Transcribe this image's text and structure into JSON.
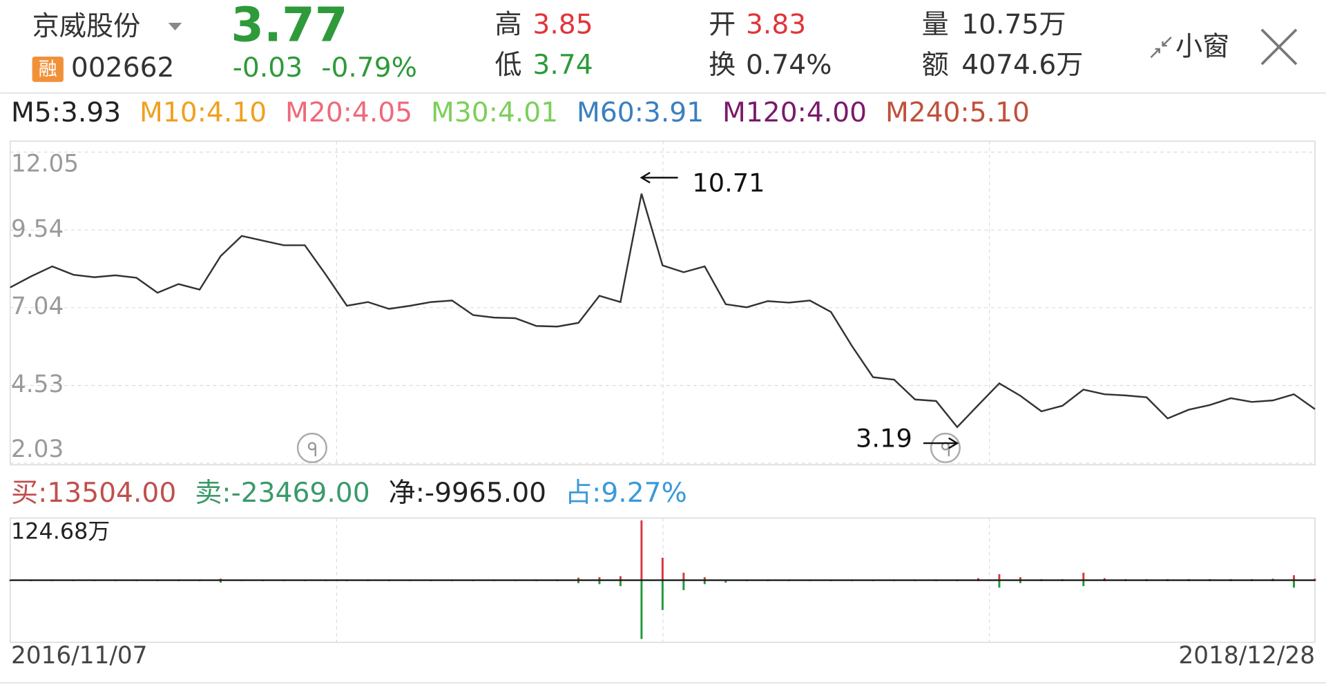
{
  "header": {
    "name": "京威股份",
    "tag": "融",
    "code": "002662",
    "price": "3.77",
    "change": "-0.03",
    "change_pct": "-0.79%",
    "high_label": "高",
    "high": "3.85",
    "low_label": "低",
    "low": "3.74",
    "open_label": "开",
    "open": "3.83",
    "turnover_label": "换",
    "turnover": "0.74%",
    "volume_label": "量",
    "volume": "10.75万",
    "amount_label": "额",
    "amount": "4074.6万",
    "mini_window": "小窗"
  },
  "ma": [
    {
      "text": "M5:3.93",
      "color": "#222222"
    },
    {
      "text": "M10:4.10",
      "color": "#f0a020"
    },
    {
      "text": "M20:4.05",
      "color": "#f0687a"
    },
    {
      "text": "M30:4.01",
      "color": "#7ccf5a"
    },
    {
      "text": "M60:3.91",
      "color": "#3a7fc0"
    },
    {
      "text": "M120:4.00",
      "color": "#7a1a6a"
    },
    {
      "text": "M240:5.10",
      "color": "#c0503a"
    }
  ],
  "flow_legend": [
    {
      "text": "买:13504.00",
      "color": "#c0504d"
    },
    {
      "text": "卖:-23469.00",
      "color": "#3a9a6a"
    },
    {
      "text": "净:-9965.00",
      "color": "#222222"
    },
    {
      "text": "占:9.27%",
      "color": "#3a9ad9"
    }
  ],
  "chart_data": [
    {
      "type": "line",
      "color": "#333333",
      "ylim": [
        2.03,
        12.05
      ],
      "yticks": [
        12.05,
        9.54,
        7.04,
        4.53,
        2.03
      ],
      "grid": true,
      "categories": [
        "2016/11/07",
        null,
        null,
        null,
        null,
        null,
        null,
        null,
        null,
        null,
        null,
        null,
        null,
        null,
        null,
        null,
        null,
        null,
        null,
        null,
        null,
        null,
        null,
        null,
        null,
        null,
        null,
        null,
        null,
        null,
        null,
        null,
        null,
        null,
        null,
        null,
        null,
        null,
        null,
        null,
        null,
        null,
        null,
        null,
        null,
        null,
        null,
        null,
        null,
        null,
        null,
        null,
        null,
        null,
        null,
        null,
        null,
        null,
        null,
        null,
        null,
        null,
        "2018/12/28"
      ],
      "values": [
        7.69,
        8.05,
        8.37,
        8.1,
        8.02,
        8.08,
        8.0,
        7.52,
        7.8,
        7.62,
        8.7,
        9.35,
        9.2,
        9.05,
        9.05,
        8.1,
        7.1,
        7.22,
        7.0,
        7.1,
        7.22,
        7.27,
        6.8,
        6.72,
        6.7,
        6.45,
        6.43,
        6.55,
        7.42,
        7.22,
        10.71,
        8.4,
        8.18,
        8.37,
        7.15,
        7.05,
        7.25,
        7.2,
        7.27,
        6.9,
        5.8,
        4.8,
        4.72,
        4.08,
        4.03,
        3.19,
        3.9,
        4.6,
        4.2,
        3.7,
        3.88,
        4.4,
        4.25,
        4.21,
        4.15,
        3.47,
        3.75,
        3.9,
        4.12,
        4.0,
        4.05,
        4.25,
        3.77
      ],
      "annotations": [
        10.71,
        3.19
      ]
    },
    {
      "type": "bar",
      "ylim": [
        -124.68,
        124.68
      ],
      "yticks": [
        {
          "value": 124.68,
          "label": "124.68万"
        }
      ],
      "series": [
        {
          "color": "#d9363e",
          "values": [
            1,
            1,
            1,
            1,
            1,
            1,
            1,
            1,
            1,
            1,
            3,
            1,
            1,
            1,
            1,
            1,
            1,
            1,
            1,
            1,
            1,
            1,
            1,
            1,
            1,
            1,
            1,
            5,
            6,
            8,
            120,
            45,
            15,
            6,
            1,
            1,
            1,
            1,
            1,
            1,
            1,
            1,
            1,
            1,
            1,
            1,
            4,
            12,
            6,
            2,
            2,
            15,
            4,
            2,
            2,
            2,
            2,
            2,
            2,
            2,
            3,
            10,
            3
          ]
        },
        {
          "color": "#1f9a3a",
          "values": [
            -2,
            -2,
            -2,
            -2,
            -2,
            -2,
            -2,
            -2,
            -2,
            -2,
            -5,
            -2,
            -2,
            -2,
            -2,
            -2,
            -2,
            -2,
            -2,
            -2,
            -2,
            -2,
            -2,
            -2,
            -2,
            -2,
            -2,
            -6,
            -8,
            -12,
            -118,
            -60,
            -20,
            -8,
            -5,
            -2,
            -2,
            -2,
            -2,
            -2,
            -2,
            -2,
            -2,
            -2,
            -2,
            -2,
            -2,
            -15,
            -6,
            -2,
            -2,
            -12,
            -2,
            -2,
            -2,
            -2,
            -2,
            -2,
            -2,
            -2,
            -2,
            -15,
            -2
          ]
        }
      ]
    }
  ]
}
